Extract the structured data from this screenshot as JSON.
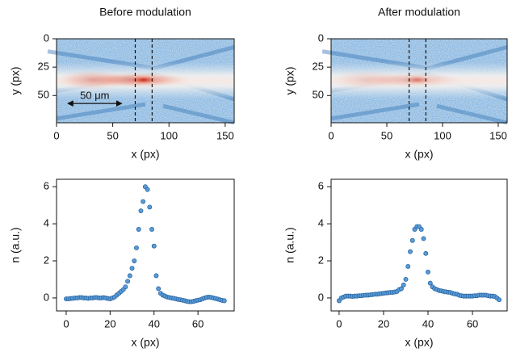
{
  "chart_data": [
    {
      "type": "heatmap",
      "title": "Before modulation",
      "xlabel": "x (px)",
      "ylabel": "y (px)",
      "xlim": [
        0,
        158
      ],
      "ylim": [
        0,
        74
      ],
      "y_inverted": true,
      "xticks": [
        0,
        50,
        100,
        150
      ],
      "yticks": [
        0,
        25,
        50
      ],
      "vlines": [
        70,
        85
      ],
      "red_strength": 1.0,
      "scale_bar": {
        "label": "50 μm",
        "x": [
          10,
          58
        ],
        "y": 57
      }
    },
    {
      "type": "heatmap",
      "title": "After modulation",
      "xlabel": "x (px)",
      "ylabel": "y (px)",
      "xlim": [
        0,
        158
      ],
      "ylim": [
        0,
        74
      ],
      "y_inverted": true,
      "xticks": [
        0,
        50,
        100,
        150
      ],
      "yticks": [
        0,
        25,
        50
      ],
      "vlines": [
        70,
        85
      ],
      "red_strength": 0.5
    },
    {
      "type": "scatter",
      "xlabel": "x (px)",
      "ylabel": "n (a.u.)",
      "color": "#5b9bd5",
      "edge": "#1f5f9f",
      "xlim": [
        -4.4,
        76.5
      ],
      "ylim": [
        -0.7,
        6.4
      ],
      "xticks": [
        0,
        20,
        40,
        60
      ],
      "yticks": [
        0,
        2,
        4,
        6
      ],
      "x": [
        0,
        1,
        2,
        3,
        4,
        5,
        6,
        7,
        8,
        9,
        10,
        11,
        12,
        13,
        14,
        15,
        16,
        17,
        18,
        19,
        20,
        21,
        22,
        23,
        24,
        25,
        26,
        27,
        28,
        29,
        30,
        31,
        32,
        33,
        34,
        35,
        36,
        37,
        38,
        39,
        40,
        41,
        42,
        43,
        44,
        45,
        46,
        47,
        48,
        49,
        50,
        51,
        52,
        53,
        54,
        55,
        56,
        57,
        58,
        59,
        60,
        61,
        62,
        63,
        64,
        65,
        66,
        67,
        68,
        69,
        70,
        71,
        72
      ],
      "values": [
        -0.05,
        -0.05,
        -0.03,
        -0.02,
        0,
        0,
        0.02,
        0.02,
        0,
        0,
        -0.02,
        0,
        0,
        0.02,
        0.02,
        0,
        0,
        0.02,
        0,
        -0.03,
        -0.05,
        0,
        0.05,
        0.15,
        0.25,
        0.35,
        0.45,
        0.6,
        0.9,
        1.2,
        1.6,
        2.0,
        2.7,
        3.7,
        4.7,
        5.2,
        6.0,
        5.85,
        4.9,
        3.7,
        2.8,
        1.2,
        0.5,
        0.25,
        0.15,
        0.1,
        0.05,
        0.02,
        0,
        -0.02,
        -0.05,
        -0.08,
        -0.1,
        -0.12,
        -0.15,
        -0.18,
        -0.2,
        -0.2,
        -0.18,
        -0.15,
        -0.12,
        -0.1,
        -0.05,
        0,
        0.03,
        0.05,
        0.03,
        0,
        -0.03,
        -0.06,
        -0.1,
        -0.13,
        -0.15
      ]
    },
    {
      "type": "scatter",
      "xlabel": "x (px)",
      "ylabel": "n (a.u.)",
      "color": "#5b9bd5",
      "edge": "#1f5f9f",
      "xlim": [
        -3.6,
        75.6
      ],
      "ylim": [
        -0.7,
        6.4
      ],
      "xticks": [
        0,
        20,
        40,
        60
      ],
      "yticks": [
        0,
        2,
        4,
        6
      ],
      "x": [
        0,
        1,
        2,
        3,
        4,
        5,
        6,
        7,
        8,
        9,
        10,
        11,
        12,
        13,
        14,
        15,
        16,
        17,
        18,
        19,
        20,
        21,
        22,
        23,
        24,
        25,
        26,
        27,
        28,
        29,
        30,
        31,
        32,
        33,
        34,
        35,
        36,
        37,
        38,
        39,
        40,
        41,
        42,
        43,
        44,
        45,
        46,
        47,
        48,
        49,
        50,
        51,
        52,
        53,
        54,
        55,
        56,
        57,
        58,
        59,
        60,
        61,
        62,
        63,
        64,
        65,
        66,
        67,
        68,
        69,
        70,
        71,
        72
      ],
      "values": [
        -0.15,
        0,
        0.05,
        0.1,
        0.1,
        0.1,
        0.08,
        0.1,
        0.1,
        0.12,
        0.12,
        0.14,
        0.15,
        0.15,
        0.17,
        0.18,
        0.2,
        0.2,
        0.22,
        0.24,
        0.25,
        0.27,
        0.28,
        0.3,
        0.3,
        0.32,
        0.35,
        0.45,
        0.5,
        0.7,
        1.0,
        1.7,
        2.5,
        3.1,
        3.7,
        3.85,
        3.85,
        3.7,
        3.2,
        2.4,
        1.4,
        0.8,
        0.6,
        0.5,
        0.45,
        0.4,
        0.38,
        0.35,
        0.33,
        0.31,
        0.3,
        0.25,
        0.22,
        0.2,
        0.15,
        0.12,
        0.1,
        0.1,
        0.1,
        0.1,
        0.1,
        0.12,
        0.12,
        0.15,
        0.15,
        0.15,
        0.15,
        0.12,
        0.1,
        0.1,
        0.08,
        0.0,
        -0.1
      ]
    }
  ]
}
